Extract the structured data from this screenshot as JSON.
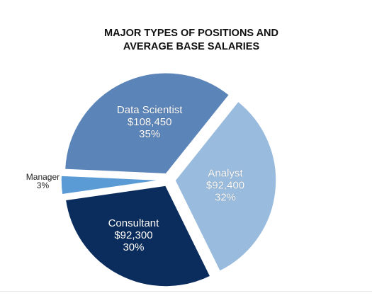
{
  "chart_data": {
    "type": "pie",
    "title": [
      "MAJOR TYPES OF POSITIONS AND",
      "AVERAGE BASE SALARIES"
    ],
    "slices": [
      {
        "name": "Data Scientist",
        "salary": "$108,450",
        "percent": 35,
        "percent_label": "35%",
        "color": "#5b84b8",
        "text_color": "#ffffff"
      },
      {
        "name": "Analyst",
        "salary": "$92,400",
        "percent": 32,
        "percent_label": "32%",
        "color": "#99bbdd",
        "text_color": "#ffffff"
      },
      {
        "name": "Consultant",
        "salary": "$92,300",
        "percent": 30,
        "percent_label": "30%",
        "color": "#0b2d5e",
        "text_color": "#ffffff"
      },
      {
        "name": "Manager",
        "salary": "",
        "percent": 3,
        "percent_label": "3%",
        "color": "#5b9bd5",
        "text_color": "#222222"
      }
    ],
    "legend": "none"
  }
}
